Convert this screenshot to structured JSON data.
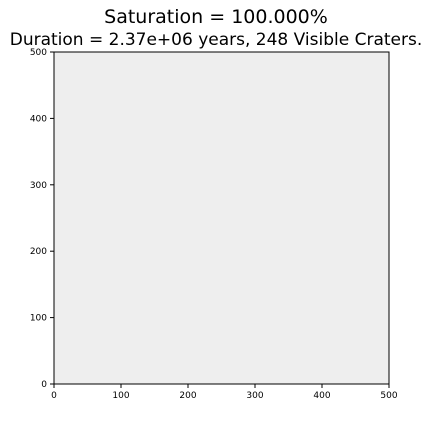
{
  "chart_data": {
    "type": "scatter",
    "title": "Saturation = 100.000%",
    "subtitle": "Duration = 2.37e+06 years, 248 Visible Craters.",
    "xlabel": "",
    "ylabel": "",
    "xlim": [
      0,
      500
    ],
    "ylim": [
      0,
      500
    ],
    "xticks": [
      "0",
      "100",
      "200",
      "300",
      "400",
      "500"
    ],
    "yticks": [
      "0",
      "100",
      "200",
      "300",
      "400",
      "500"
    ],
    "grid": false,
    "background_color": "#eeeeee",
    "series": []
  }
}
